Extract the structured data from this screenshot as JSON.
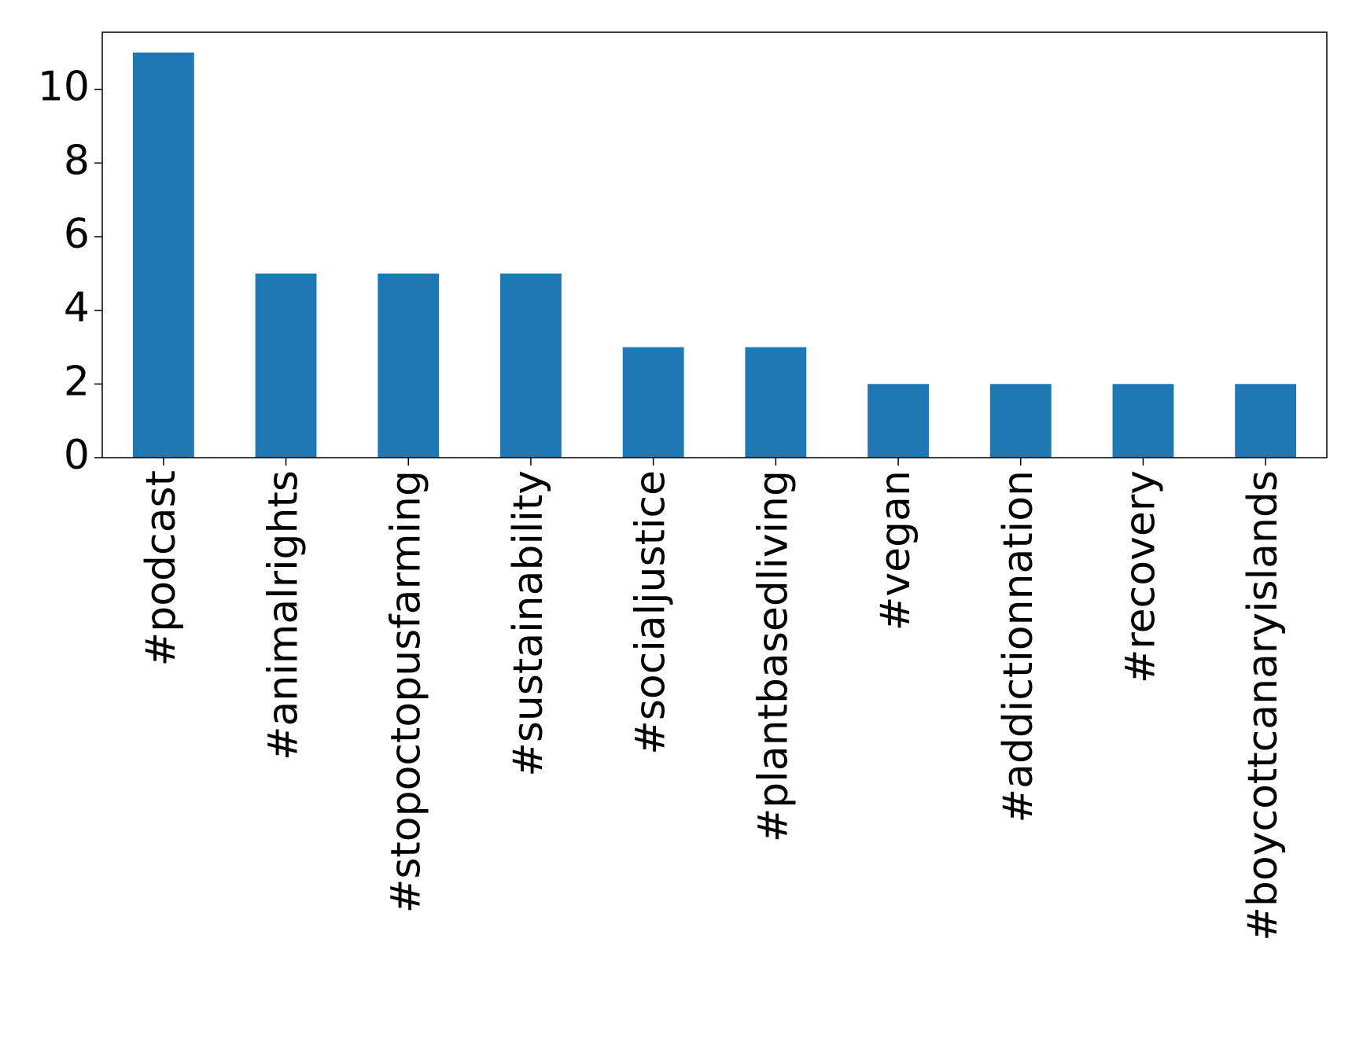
{
  "chart_data": {
    "type": "bar",
    "categories": [
      "#podcast",
      "#animalrights",
      "#stopoctopusfarming",
      "#sustainability",
      "#socialjustice",
      "#plantbasedliving",
      "#vegan",
      "#addictionnation",
      "#recovery",
      "#boycottcanaryislands"
    ],
    "values": [
      11,
      5,
      5,
      5,
      3,
      3,
      2,
      2,
      2,
      2
    ],
    "color": "#1f77b4",
    "ylim": [
      0,
      11.55
    ],
    "yticks": [
      0,
      2,
      4,
      6,
      8,
      10
    ],
    "grid": false
  }
}
